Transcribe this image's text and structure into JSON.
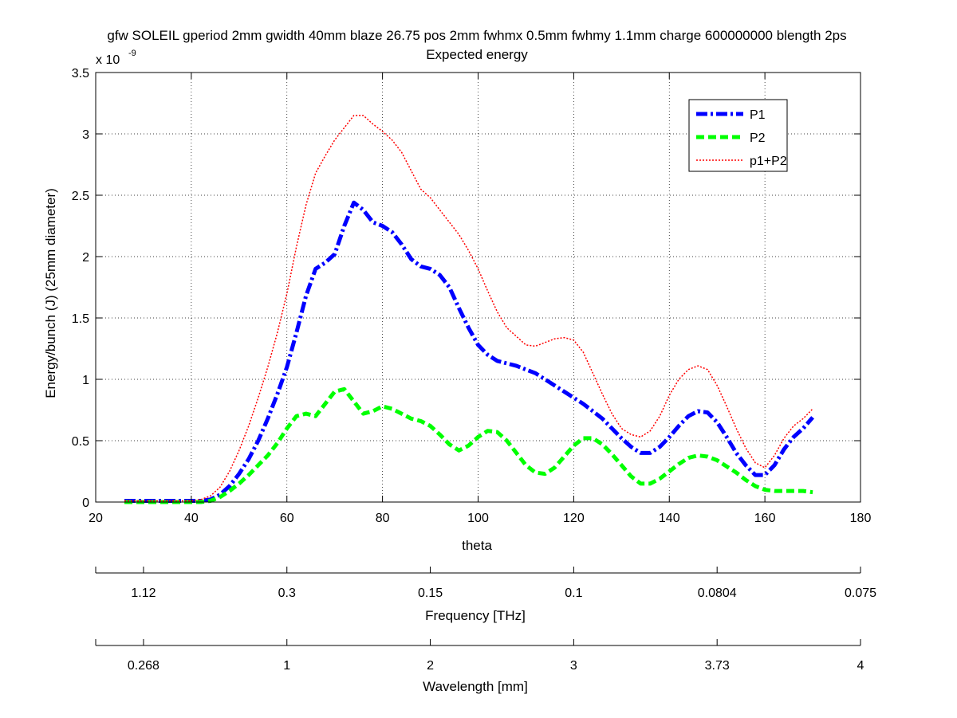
{
  "window": {
    "background": "#ffffff"
  },
  "chart_data": {
    "type": "line",
    "title": "gfw SOLEIL gperiod 2mm gwidth 40mm blaze 26.75 pos 2mm fwhmx 0.5mm fwhmy 1.1mm charge 600000000 blength 2ps",
    "subtitle": "Expected energy",
    "xlabel": "theta",
    "ylabel": "Energy/bunch (J) (25mm diameter)",
    "y_multiplier": {
      "base": "x 10",
      "exponent": "-9"
    },
    "xlim": [
      20,
      180
    ],
    "ylim": [
      0,
      3.5
    ],
    "xticks": [
      20,
      40,
      60,
      80,
      100,
      120,
      140,
      160,
      180
    ],
    "yticks": [
      0,
      0.5,
      1,
      1.5,
      2,
      2.5,
      3,
      3.5
    ],
    "xtick_labels": [
      "20",
      "40",
      "60",
      "80",
      "100",
      "120",
      "140",
      "160",
      "180"
    ],
    "ytick_labels": [
      "0",
      "0.5",
      "1",
      "1.5",
      "2",
      "2.5",
      "3",
      "3.5"
    ],
    "grid": true,
    "legend_position": "top-right",
    "series": [
      {
        "name": "P1",
        "color": "#0000ff",
        "style": "dash-dot",
        "x": [
          26,
          30,
          35,
          40,
          42,
          44,
          46,
          48,
          50,
          52,
          54,
          56,
          58,
          60,
          62,
          64,
          66,
          68,
          70,
          72,
          74,
          76,
          78,
          80,
          82,
          84,
          86,
          88,
          90,
          92,
          94,
          96,
          98,
          100,
          102,
          104,
          106,
          108,
          110,
          112,
          114,
          116,
          118,
          120,
          122,
          124,
          126,
          128,
          130,
          132,
          134,
          136,
          138,
          140,
          142,
          144,
          146,
          148,
          150,
          152,
          154,
          156,
          158,
          160,
          162,
          164,
          166,
          168,
          170
        ],
        "values": [
          0.01,
          0.01,
          0.01,
          0.01,
          0.01,
          0.02,
          0.06,
          0.13,
          0.23,
          0.35,
          0.5,
          0.68,
          0.88,
          1.1,
          1.38,
          1.68,
          1.9,
          1.95,
          2.02,
          2.25,
          2.44,
          2.38,
          2.28,
          2.25,
          2.2,
          2.1,
          1.98,
          1.92,
          1.9,
          1.85,
          1.75,
          1.58,
          1.42,
          1.28,
          1.2,
          1.15,
          1.13,
          1.11,
          1.08,
          1.05,
          1.0,
          0.95,
          0.9,
          0.85,
          0.8,
          0.74,
          0.68,
          0.6,
          0.52,
          0.45,
          0.4,
          0.4,
          0.45,
          0.53,
          0.62,
          0.7,
          0.74,
          0.73,
          0.65,
          0.53,
          0.4,
          0.3,
          0.22,
          0.22,
          0.3,
          0.43,
          0.53,
          0.6,
          0.69
        ]
      },
      {
        "name": "P2",
        "color": "#00ff00",
        "style": "dashed",
        "x": [
          26,
          30,
          35,
          40,
          42,
          44,
          46,
          48,
          50,
          52,
          54,
          56,
          58,
          60,
          62,
          64,
          66,
          68,
          70,
          72,
          74,
          76,
          78,
          80,
          82,
          84,
          86,
          88,
          90,
          92,
          94,
          96,
          98,
          100,
          102,
          104,
          106,
          108,
          110,
          112,
          114,
          116,
          118,
          120,
          122,
          124,
          126,
          128,
          130,
          132,
          134,
          136,
          138,
          140,
          142,
          144,
          146,
          148,
          150,
          152,
          154,
          156,
          158,
          160,
          162,
          164,
          166,
          168,
          170
        ],
        "values": [
          0.0,
          0.0,
          0.0,
          0.0,
          0.0,
          0.01,
          0.04,
          0.09,
          0.15,
          0.22,
          0.3,
          0.38,
          0.48,
          0.6,
          0.7,
          0.72,
          0.7,
          0.8,
          0.9,
          0.92,
          0.82,
          0.72,
          0.74,
          0.78,
          0.76,
          0.72,
          0.68,
          0.66,
          0.62,
          0.55,
          0.47,
          0.42,
          0.46,
          0.53,
          0.58,
          0.57,
          0.5,
          0.4,
          0.3,
          0.24,
          0.23,
          0.28,
          0.37,
          0.46,
          0.52,
          0.52,
          0.47,
          0.39,
          0.3,
          0.21,
          0.15,
          0.15,
          0.19,
          0.25,
          0.31,
          0.36,
          0.38,
          0.37,
          0.34,
          0.29,
          0.24,
          0.18,
          0.13,
          0.1,
          0.09,
          0.09,
          0.09,
          0.09,
          0.08
        ]
      },
      {
        "name": "p1+P2",
        "color": "#ff0000",
        "style": "dotted",
        "x": [
          26,
          30,
          35,
          40,
          42,
          44,
          46,
          48,
          50,
          52,
          54,
          56,
          58,
          60,
          62,
          64,
          66,
          68,
          70,
          72,
          74,
          76,
          78,
          80,
          82,
          84,
          86,
          88,
          90,
          92,
          94,
          96,
          98,
          100,
          102,
          104,
          106,
          108,
          110,
          112,
          114,
          116,
          118,
          120,
          122,
          124,
          126,
          128,
          130,
          132,
          134,
          136,
          138,
          140,
          142,
          144,
          146,
          148,
          150,
          152,
          154,
          156,
          158,
          160,
          162,
          164,
          166,
          168,
          170
        ],
        "values": [
          0.01,
          0.01,
          0.01,
          0.01,
          0.02,
          0.05,
          0.12,
          0.25,
          0.42,
          0.62,
          0.85,
          1.1,
          1.38,
          1.7,
          2.08,
          2.42,
          2.68,
          2.82,
          2.95,
          3.05,
          3.15,
          3.15,
          3.08,
          3.02,
          2.95,
          2.85,
          2.7,
          2.55,
          2.48,
          2.38,
          2.28,
          2.18,
          2.05,
          1.9,
          1.72,
          1.55,
          1.42,
          1.35,
          1.28,
          1.27,
          1.3,
          1.33,
          1.34,
          1.32,
          1.22,
          1.05,
          0.88,
          0.72,
          0.6,
          0.55,
          0.53,
          0.58,
          0.7,
          0.87,
          1.0,
          1.08,
          1.11,
          1.08,
          0.95,
          0.78,
          0.6,
          0.44,
          0.32,
          0.28,
          0.38,
          0.52,
          0.62,
          0.68,
          0.76
        ]
      }
    ],
    "secondary_axes": [
      {
        "label": "Frequency [THz]",
        "tick_positions_theta": [
          30,
          60,
          90,
          120,
          150,
          180
        ],
        "tick_labels": [
          "1.12",
          "0.3",
          "0.15",
          "0.1",
          "0.0804",
          "0.075"
        ]
      },
      {
        "label": "Wavelength [mm]",
        "tick_positions_theta": [
          30,
          60,
          90,
          120,
          150,
          180
        ],
        "tick_labels": [
          "0.268",
          "1",
          "2",
          "3",
          "3.73",
          "4"
        ]
      }
    ]
  }
}
